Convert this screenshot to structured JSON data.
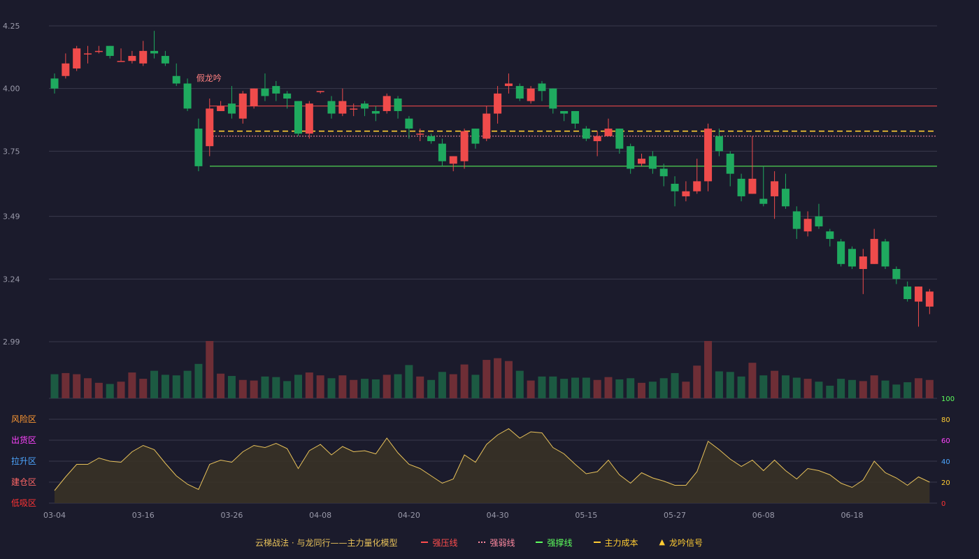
{
  "chart_data": {
    "type": "candlestick",
    "price_axis": {
      "ticks": [
        4.25,
        4.0,
        3.75,
        3.49,
        3.24,
        2.99
      ],
      "range": [
        2.99,
        4.25
      ]
    },
    "date_labels": [
      {
        "label": "03-04",
        "index": 0
      },
      {
        "label": "03-16",
        "index": 8
      },
      {
        "label": "03-26",
        "index": 16
      },
      {
        "label": "04-08",
        "index": 24
      },
      {
        "label": "04-20",
        "index": 32
      },
      {
        "label": "04-30",
        "index": 40
      },
      {
        "label": "05-15",
        "index": 48
      },
      {
        "label": "05-27",
        "index": 56
      },
      {
        "label": "06-08",
        "index": 64
      },
      {
        "label": "06-18",
        "index": 72
      }
    ],
    "candles": [
      [
        4.04,
        4.0,
        4.06,
        3.98
      ],
      [
        4.05,
        4.1,
        4.14,
        4.04
      ],
      [
        4.08,
        4.16,
        4.17,
        4.07
      ],
      [
        4.14,
        4.14,
        4.17,
        4.1
      ],
      [
        4.15,
        4.15,
        4.17,
        4.14
      ],
      [
        4.17,
        4.13,
        4.17,
        4.12
      ],
      [
        4.11,
        4.11,
        4.16,
        4.11
      ],
      [
        4.11,
        4.13,
        4.15,
        4.1
      ],
      [
        4.1,
        4.15,
        4.19,
        4.09
      ],
      [
        4.15,
        4.14,
        4.23,
        4.12
      ],
      [
        4.13,
        4.1,
        4.15,
        4.09
      ],
      [
        4.05,
        4.02,
        4.1,
        4.01
      ],
      [
        4.02,
        3.92,
        4.04,
        3.91
      ],
      [
        3.84,
        3.69,
        3.88,
        3.67
      ],
      [
        3.77,
        3.92,
        3.96,
        3.73
      ],
      [
        3.91,
        3.93,
        3.95,
        3.91
      ],
      [
        3.94,
        3.9,
        4.01,
        3.88
      ],
      [
        3.88,
        3.98,
        3.99,
        3.86
      ],
      [
        3.93,
        4.0,
        4.0,
        3.92
      ],
      [
        4.0,
        3.97,
        4.06,
        3.95
      ],
      [
        4.01,
        3.98,
        4.03,
        3.95
      ],
      [
        3.98,
        3.96,
        3.99,
        3.92
      ],
      [
        3.95,
        3.82,
        3.95,
        3.81
      ],
      [
        3.82,
        3.94,
        3.95,
        3.8
      ],
      [
        3.99,
        3.99,
        3.99,
        3.98
      ],
      [
        3.95,
        3.9,
        3.97,
        3.88
      ],
      [
        3.9,
        3.95,
        4.0,
        3.89
      ],
      [
        3.92,
        3.92,
        3.94,
        3.89
      ],
      [
        3.94,
        3.92,
        3.95,
        3.89
      ],
      [
        3.91,
        3.9,
        3.93,
        3.87
      ],
      [
        3.91,
        3.97,
        3.98,
        3.9
      ],
      [
        3.96,
        3.91,
        3.97,
        3.88
      ],
      [
        3.88,
        3.84,
        3.89,
        3.8
      ],
      [
        3.82,
        3.82,
        3.84,
        3.79
      ],
      [
        3.81,
        3.79,
        3.82,
        3.78
      ],
      [
        3.78,
        3.71,
        3.8,
        3.69
      ],
      [
        3.7,
        3.73,
        3.73,
        3.67
      ],
      [
        3.71,
        3.83,
        3.84,
        3.68
      ],
      [
        3.84,
        3.78,
        3.84,
        3.76
      ],
      [
        3.8,
        3.9,
        3.93,
        3.79
      ],
      [
        3.9,
        3.98,
        4.01,
        3.86
      ],
      [
        4.01,
        4.02,
        4.06,
        3.98
      ],
      [
        4.01,
        3.96,
        4.02,
        3.95
      ],
      [
        3.95,
        4.0,
        4.01,
        3.94
      ],
      [
        4.02,
        3.99,
        4.03,
        3.95
      ],
      [
        4.0,
        3.92,
        4.0,
        3.9
      ],
      [
        3.91,
        3.9,
        3.91,
        3.87
      ],
      [
        3.91,
        3.86,
        3.91,
        3.84
      ],
      [
        3.84,
        3.8,
        3.85,
        3.79
      ],
      [
        3.79,
        3.81,
        3.83,
        3.73
      ],
      [
        3.81,
        3.84,
        3.88,
        3.81
      ],
      [
        3.84,
        3.76,
        3.84,
        3.74
      ],
      [
        3.77,
        3.68,
        3.78,
        3.66
      ],
      [
        3.7,
        3.72,
        3.74,
        3.69
      ],
      [
        3.73,
        3.68,
        3.75,
        3.66
      ],
      [
        3.68,
        3.65,
        3.7,
        3.61
      ],
      [
        3.62,
        3.59,
        3.65,
        3.53
      ],
      [
        3.57,
        3.59,
        3.63,
        3.55
      ],
      [
        3.59,
        3.63,
        3.72,
        3.58
      ],
      [
        3.63,
        3.84,
        3.86,
        3.59
      ],
      [
        3.81,
        3.75,
        3.84,
        3.73
      ],
      [
        3.74,
        3.66,
        3.75,
        3.61
      ],
      [
        3.64,
        3.57,
        3.66,
        3.55
      ],
      [
        3.58,
        3.64,
        3.81,
        3.58
      ],
      [
        3.56,
        3.54,
        3.69,
        3.53
      ],
      [
        3.57,
        3.63,
        3.67,
        3.48
      ],
      [
        3.6,
        3.53,
        3.66,
        3.52
      ],
      [
        3.51,
        3.44,
        3.53,
        3.4
      ],
      [
        3.43,
        3.48,
        3.51,
        3.41
      ],
      [
        3.49,
        3.45,
        3.54,
        3.44
      ],
      [
        3.43,
        3.4,
        3.44,
        3.37
      ],
      [
        3.39,
        3.3,
        3.4,
        3.29
      ],
      [
        3.36,
        3.29,
        3.37,
        3.28
      ],
      [
        3.28,
        3.33,
        3.36,
        3.18
      ],
      [
        3.3,
        3.4,
        3.44,
        3.3
      ],
      [
        3.39,
        3.29,
        3.4,
        3.28
      ],
      [
        3.28,
        3.24,
        3.29,
        3.22
      ],
      [
        3.21,
        3.16,
        3.23,
        3.15
      ],
      [
        3.15,
        3.21,
        3.21,
        3.05
      ],
      [
        3.13,
        3.19,
        3.2,
        3.1
      ]
    ],
    "volume": [
      42,
      44,
      42,
      35,
      27,
      25,
      29,
      45,
      34,
      48,
      41,
      40,
      48,
      60,
      100,
      43,
      39,
      32,
      31,
      38,
      37,
      30,
      41,
      45,
      40,
      35,
      40,
      32,
      34,
      33,
      41,
      42,
      58,
      38,
      32,
      46,
      42,
      59,
      41,
      67,
      70,
      65,
      48,
      31,
      38,
      38,
      34,
      36,
      36,
      32,
      37,
      33,
      35,
      27,
      29,
      35,
      44,
      29,
      57,
      100,
      47,
      46,
      38,
      62,
      40,
      48,
      40,
      36,
      34,
      29,
      22,
      34,
      32,
      30,
      40,
      31,
      24,
      28,
      35,
      32
    ],
    "indicator": {
      "axis_ticks": [
        100,
        80,
        60,
        40,
        20,
        0
      ],
      "zones": [
        "风险区",
        "出货区",
        "拉升区",
        "建仓区",
        "低吸区"
      ],
      "values": [
        12,
        25,
        37,
        37,
        43,
        40,
        39,
        49,
        55,
        51,
        38,
        26,
        18,
        13,
        37,
        41,
        39,
        49,
        55,
        53,
        57,
        52,
        33,
        50,
        56,
        46,
        54,
        49,
        50,
        47,
        62,
        48,
        37,
        33,
        26,
        19,
        23,
        46,
        39,
        56,
        65,
        71,
        62,
        68,
        67,
        53,
        47,
        37,
        28,
        30,
        41,
        27,
        19,
        29,
        24,
        21,
        17,
        17,
        30,
        59,
        51,
        42,
        35,
        41,
        31,
        41,
        31,
        23,
        33,
        31,
        27,
        19,
        15,
        22,
        40,
        29,
        24,
        17,
        25,
        20
      ]
    },
    "lines": {
      "strong_pressure": 3.93,
      "weak_line": 3.81,
      "main_cost": 3.83,
      "strong_support": 3.69
    },
    "signal": {
      "label": "假龙吟",
      "index": 14
    },
    "legend": {
      "title": "云梯战法 · 与龙同行——主力量化模型",
      "items": [
        {
          "label": "强压线",
          "color": "#ff4d4d",
          "style": "line"
        },
        {
          "label": "强弱线",
          "color": "#ff8aa0",
          "style": "dot"
        },
        {
          "label": "强撑线",
          "color": "#5dff5d",
          "style": "line"
        },
        {
          "label": "主力成本",
          "color": "#ffcc33",
          "style": "dash"
        },
        {
          "label": "龙吟信号",
          "color": "#ffcc33",
          "style": "tri",
          "glyph": "▲"
        }
      ]
    },
    "colors": {
      "up": "#ef4b4b",
      "down": "#1faa5f",
      "vol_up": "#6e2e36",
      "vol_down": "#1c5a42",
      "zone_risk": "#ff9933",
      "zone_ship": "#ff44ff",
      "zone_lift": "#4da6ff",
      "zone_build": "#ff6666",
      "zone_low": "#ff3333",
      "indicator_line": "#e8c25a"
    }
  }
}
